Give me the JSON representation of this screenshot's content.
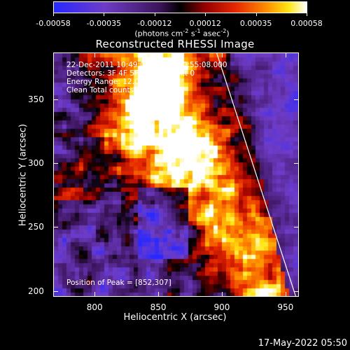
{
  "colorbar": {
    "ticks": [
      "-0.00058",
      "-0.00035",
      "-0.00012",
      "0.00012",
      "0.00035",
      "0.00058"
    ],
    "unit_prefix": "(photons cm",
    "unit_exp1": "-2",
    "unit_mid1": " s",
    "unit_exp2": "-1",
    "unit_mid2": " asec",
    "unit_exp3": "-2",
    "unit_suffix": ")"
  },
  "title": "Reconstructed RHESSI Image",
  "info": {
    "time_range": "22-Dec-2011 10:49:08.000 to 10:55:08.000",
    "detectors": "Detectors: 3F 4F 5F 6F 7F 8F, Att 0",
    "energy": "Energy Range: 12.0 - 25.0 keV",
    "method": "Clean     Total counts: 1.56E+04",
    "peak": "Position of Peak = [852,307]"
  },
  "axes": {
    "xlabel": "Heliocentric X (arcsec)",
    "ylabel": "Heliocentric Y (arcsec)",
    "xticks": [
      "800",
      "850",
      "900",
      "950"
    ],
    "yticks": [
      "200",
      "250",
      "300",
      "350"
    ],
    "xrange": [
      768,
      960
    ],
    "yrange": [
      196,
      386
    ]
  },
  "timestamp": "17-May-2022 05:50",
  "colors": {
    "background": "#000000",
    "text": "#ffffff"
  },
  "image": {
    "peak_x": 852,
    "peak_y": 307,
    "limb_line": [
      [
        896,
        386
      ],
      [
        958,
        196
      ]
    ]
  }
}
